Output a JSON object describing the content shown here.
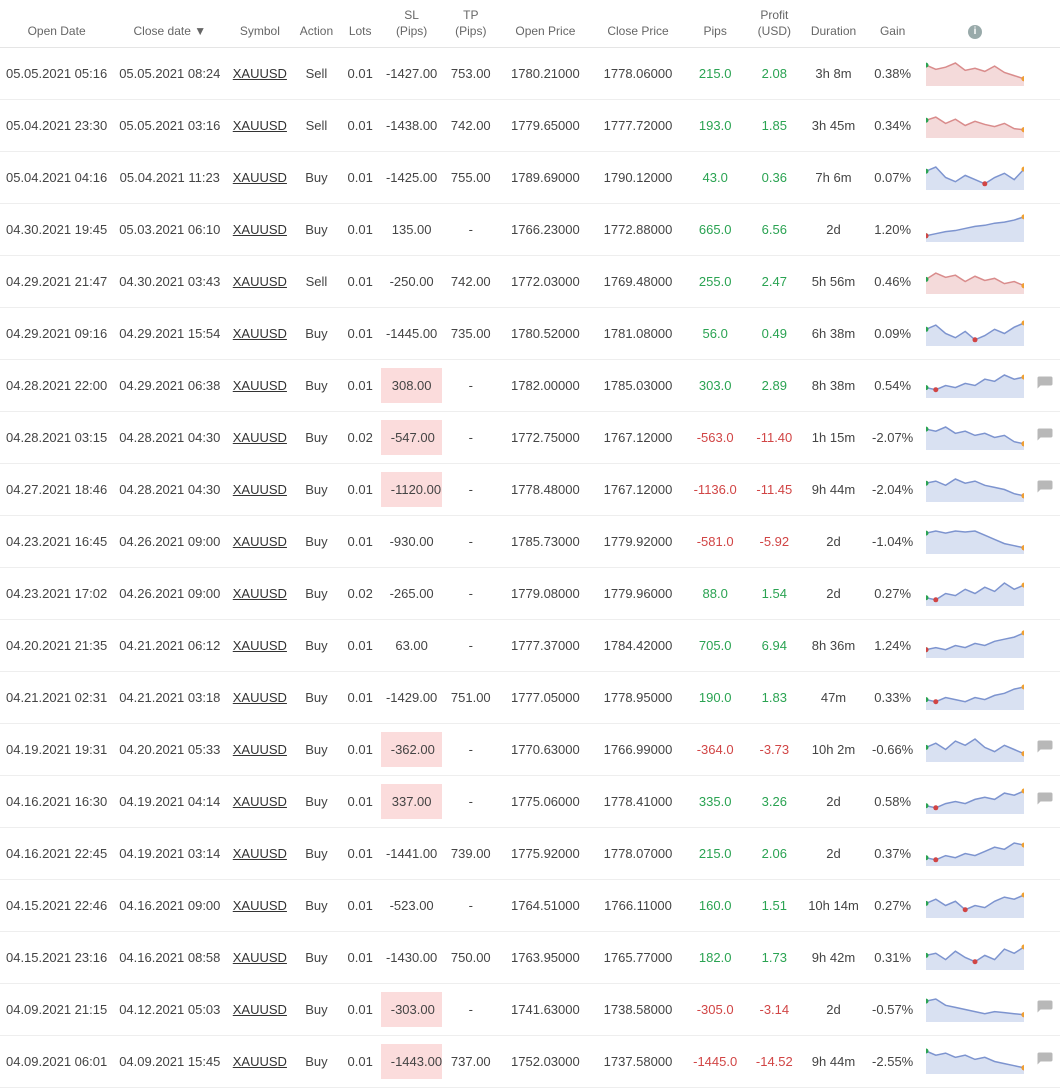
{
  "colors": {
    "positive": "#2aa352",
    "negative": "#d14545",
    "sl_hit_bg": "#fbdcdc",
    "row_border": "#eeeeee",
    "header_border": "#e5e5e5",
    "text": "#444444",
    "header_text": "#666666",
    "symbol": "#333333",
    "spark_buy_stroke": "#7d94cf",
    "spark_buy_fill": "#d9e1f2",
    "spark_sell_stroke": "#d98c8c",
    "spark_sell_fill": "#f4dada",
    "marker_green": "#2aa352",
    "marker_red": "#d14545",
    "marker_orange": "#f0a030",
    "comment_icon": "#b8b8b8"
  },
  "table": {
    "headers": {
      "open_date": "Open Date",
      "close_date": "Close date ▼",
      "symbol": "Symbol",
      "action": "Action",
      "lots": "Lots",
      "sl": "SL\n(Pips)",
      "tp": "TP\n(Pips)",
      "open_price": "Open Price",
      "close_price": "Close Price",
      "pips": "Pips",
      "profit": "Profit\n(USD)",
      "duration": "Duration",
      "gain": "Gain",
      "chart": "ⓘ"
    },
    "rows": [
      {
        "open": "05.05.2021 05:16",
        "close": "05.05.2021 08:24",
        "symbol": "XAUUSD",
        "action": "Sell",
        "lots": "0.01",
        "sl": "-1427.00",
        "sl_hit": false,
        "tp": "753.00",
        "op": "1780.21000",
        "cp": "1778.06000",
        "pips": "215.0",
        "pips_pos": true,
        "profit": "2.08",
        "profit_pos": true,
        "dur": "3h 8m",
        "gain": "0.38%",
        "spark": [
          18,
          14,
          16,
          20,
          13,
          15,
          12,
          17,
          11,
          8,
          5
        ],
        "comment": false
      },
      {
        "open": "05.04.2021 23:30",
        "close": "05.05.2021 03:16",
        "symbol": "XAUUSD",
        "action": "Sell",
        "lots": "0.01",
        "sl": "-1438.00",
        "sl_hit": false,
        "tp": "742.00",
        "op": "1779.65000",
        "cp": "1777.72000",
        "pips": "193.0",
        "pips_pos": true,
        "profit": "1.85",
        "profit_pos": true,
        "dur": "3h 45m",
        "gain": "0.34%",
        "spark": [
          15,
          18,
          12,
          16,
          10,
          14,
          11,
          9,
          12,
          7,
          6
        ],
        "comment": false
      },
      {
        "open": "05.04.2021 04:16",
        "close": "05.04.2021 11:23",
        "symbol": "XAUUSD",
        "action": "Buy",
        "lots": "0.01",
        "sl": "-1425.00",
        "sl_hit": false,
        "tp": "755.00",
        "op": "1789.69000",
        "cp": "1790.12000",
        "pips": "43.0",
        "pips_pos": true,
        "profit": "0.36",
        "profit_pos": true,
        "dur": "7h 6m",
        "gain": "0.07%",
        "spark": [
          16,
          20,
          10,
          6,
          12,
          8,
          4,
          10,
          14,
          8,
          18
        ],
        "comment": false
      },
      {
        "open": "04.30.2021 19:45",
        "close": "05.03.2021 06:10",
        "symbol": "XAUUSD",
        "action": "Buy",
        "lots": "0.01",
        "sl": "135.00",
        "sl_hit": false,
        "tp": "-",
        "op": "1766.23000",
        "cp": "1772.88000",
        "pips": "665.0",
        "pips_pos": true,
        "profit": "6.56",
        "profit_pos": true,
        "dur": "2d",
        "gain": "1.20%",
        "spark": [
          4,
          6,
          8,
          9,
          11,
          13,
          14,
          16,
          17,
          19,
          22
        ],
        "comment": false
      },
      {
        "open": "04.29.2021 21:47",
        "close": "04.30.2021 03:43",
        "symbol": "XAUUSD",
        "action": "Sell",
        "lots": "0.01",
        "sl": "-250.00",
        "sl_hit": false,
        "tp": "742.00",
        "op": "1772.03000",
        "cp": "1769.48000",
        "pips": "255.0",
        "pips_pos": true,
        "profit": "2.47",
        "profit_pos": true,
        "dur": "5h 56m",
        "gain": "0.46%",
        "spark": [
          12,
          18,
          14,
          16,
          10,
          15,
          11,
          13,
          8,
          10,
          6
        ],
        "comment": false
      },
      {
        "open": "04.29.2021 09:16",
        "close": "04.29.2021 15:54",
        "symbol": "XAUUSD",
        "action": "Buy",
        "lots": "0.01",
        "sl": "-1445.00",
        "sl_hit": false,
        "tp": "735.00",
        "op": "1780.52000",
        "cp": "1781.08000",
        "pips": "56.0",
        "pips_pos": true,
        "profit": "0.49",
        "profit_pos": true,
        "dur": "6h 38m",
        "gain": "0.09%",
        "spark": [
          14,
          18,
          10,
          6,
          12,
          4,
          8,
          14,
          10,
          16,
          20
        ],
        "comment": false
      },
      {
        "open": "04.28.2021 22:00",
        "close": "04.29.2021 06:38",
        "symbol": "XAUUSD",
        "action": "Buy",
        "lots": "0.01",
        "sl": "308.00",
        "sl_hit": true,
        "tp": "-",
        "op": "1782.00000",
        "cp": "1785.03000",
        "pips": "303.0",
        "pips_pos": true,
        "profit": "2.89",
        "profit_pos": true,
        "dur": "8h 38m",
        "gain": "0.54%",
        "spark": [
          8,
          6,
          10,
          8,
          12,
          10,
          16,
          14,
          20,
          16,
          18
        ],
        "comment": true
      },
      {
        "open": "04.28.2021 03:15",
        "close": "04.28.2021 04:30",
        "symbol": "XAUUSD",
        "action": "Buy",
        "lots": "0.02",
        "sl": "-547.00",
        "sl_hit": true,
        "tp": "-",
        "op": "1772.75000",
        "cp": "1767.12000",
        "pips": "-563.0",
        "pips_pos": false,
        "profit": "-11.40",
        "profit_pos": false,
        "dur": "1h 15m",
        "gain": "-2.07%",
        "spark": [
          18,
          16,
          20,
          14,
          16,
          12,
          14,
          10,
          12,
          6,
          4
        ],
        "comment": true
      },
      {
        "open": "04.27.2021 18:46",
        "close": "04.28.2021 04:30",
        "symbol": "XAUUSD",
        "action": "Buy",
        "lots": "0.01",
        "sl": "-1120.00",
        "sl_hit": true,
        "tp": "-",
        "op": "1778.48000",
        "cp": "1767.12000",
        "pips": "-1136.0",
        "pips_pos": false,
        "profit": "-11.45",
        "profit_pos": false,
        "dur": "9h 44m",
        "gain": "-2.04%",
        "spark": [
          16,
          18,
          14,
          20,
          16,
          18,
          14,
          12,
          10,
          6,
          4
        ],
        "comment": true
      },
      {
        "open": "04.23.2021 16:45",
        "close": "04.26.2021 09:00",
        "symbol": "XAUUSD",
        "action": "Buy",
        "lots": "0.01",
        "sl": "-930.00",
        "sl_hit": false,
        "tp": "-",
        "op": "1785.73000",
        "cp": "1779.92000",
        "pips": "-581.0",
        "pips_pos": false,
        "profit": "-5.92",
        "profit_pos": false,
        "dur": "2d",
        "gain": "-1.04%",
        "spark": [
          18,
          20,
          18,
          20,
          19,
          20,
          16,
          12,
          8,
          6,
          4
        ],
        "comment": false
      },
      {
        "open": "04.23.2021 17:02",
        "close": "04.26.2021 09:00",
        "symbol": "XAUUSD",
        "action": "Buy",
        "lots": "0.02",
        "sl": "-265.00",
        "sl_hit": false,
        "tp": "-",
        "op": "1779.08000",
        "cp": "1779.96000",
        "pips": "88.0",
        "pips_pos": true,
        "profit": "1.54",
        "profit_pos": true,
        "dur": "2d",
        "gain": "0.27%",
        "spark": [
          6,
          4,
          10,
          8,
          14,
          10,
          16,
          12,
          20,
          14,
          18
        ],
        "comment": false
      },
      {
        "open": "04.20.2021 21:35",
        "close": "04.21.2021 06:12",
        "symbol": "XAUUSD",
        "action": "Buy",
        "lots": "0.01",
        "sl": "63.00",
        "sl_hit": false,
        "tp": "-",
        "op": "1777.37000",
        "cp": "1784.42000",
        "pips": "705.0",
        "pips_pos": true,
        "profit": "6.94",
        "profit_pos": true,
        "dur": "8h 36m",
        "gain": "1.24%",
        "spark": [
          6,
          8,
          6,
          10,
          8,
          12,
          10,
          14,
          16,
          18,
          22
        ],
        "comment": false
      },
      {
        "open": "04.21.2021 02:31",
        "close": "04.21.2021 03:18",
        "symbol": "XAUUSD",
        "action": "Buy",
        "lots": "0.01",
        "sl": "-1429.00",
        "sl_hit": false,
        "tp": "751.00",
        "op": "1777.05000",
        "cp": "1778.95000",
        "pips": "190.0",
        "pips_pos": true,
        "profit": "1.83",
        "profit_pos": true,
        "dur": "47m",
        "gain": "0.33%",
        "spark": [
          8,
          6,
          10,
          8,
          6,
          10,
          8,
          12,
          14,
          18,
          20
        ],
        "comment": false
      },
      {
        "open": "04.19.2021 19:31",
        "close": "04.20.2021 05:33",
        "symbol": "XAUUSD",
        "action": "Buy",
        "lots": "0.01",
        "sl": "-362.00",
        "sl_hit": true,
        "tp": "-",
        "op": "1770.63000",
        "cp": "1766.99000",
        "pips": "-364.0",
        "pips_pos": false,
        "profit": "-3.73",
        "profit_pos": false,
        "dur": "10h 2m",
        "gain": "-0.66%",
        "spark": [
          12,
          16,
          10,
          18,
          14,
          20,
          12,
          8,
          14,
          10,
          6
        ],
        "comment": true
      },
      {
        "open": "04.16.2021 16:30",
        "close": "04.19.2021 04:14",
        "symbol": "XAUUSD",
        "action": "Buy",
        "lots": "0.01",
        "sl": "337.00",
        "sl_hit": true,
        "tp": "-",
        "op": "1775.06000",
        "cp": "1778.41000",
        "pips": "335.0",
        "pips_pos": true,
        "profit": "3.26",
        "profit_pos": true,
        "dur": "2d",
        "gain": "0.58%",
        "spark": [
          6,
          4,
          8,
          10,
          8,
          12,
          14,
          12,
          18,
          16,
          20
        ],
        "comment": true
      },
      {
        "open": "04.16.2021 22:45",
        "close": "04.19.2021 03:14",
        "symbol": "XAUUSD",
        "action": "Buy",
        "lots": "0.01",
        "sl": "-1441.00",
        "sl_hit": false,
        "tp": "739.00",
        "op": "1775.92000",
        "cp": "1778.07000",
        "pips": "215.0",
        "pips_pos": true,
        "profit": "2.06",
        "profit_pos": true,
        "dur": "2d",
        "gain": "0.37%",
        "spark": [
          6,
          4,
          8,
          6,
          10,
          8,
          12,
          16,
          14,
          20,
          18
        ],
        "comment": false
      },
      {
        "open": "04.15.2021 22:46",
        "close": "04.16.2021 09:00",
        "symbol": "XAUUSD",
        "action": "Buy",
        "lots": "0.01",
        "sl": "-523.00",
        "sl_hit": false,
        "tp": "-",
        "op": "1764.51000",
        "cp": "1766.11000",
        "pips": "160.0",
        "pips_pos": true,
        "profit": "1.51",
        "profit_pos": true,
        "dur": "10h 14m",
        "gain": "0.27%",
        "spark": [
          12,
          16,
          10,
          14,
          6,
          10,
          8,
          14,
          18,
          16,
          20
        ],
        "comment": false
      },
      {
        "open": "04.15.2021 23:16",
        "close": "04.16.2021 08:58",
        "symbol": "XAUUSD",
        "action": "Buy",
        "lots": "0.01",
        "sl": "-1430.00",
        "sl_hit": false,
        "tp": "750.00",
        "op": "1763.95000",
        "cp": "1765.77000",
        "pips": "182.0",
        "pips_pos": true,
        "profit": "1.73",
        "profit_pos": true,
        "dur": "9h 42m",
        "gain": "0.31%",
        "spark": [
          12,
          14,
          8,
          16,
          10,
          6,
          12,
          8,
          18,
          14,
          20
        ],
        "comment": false
      },
      {
        "open": "04.09.2021 21:15",
        "close": "04.12.2021 05:03",
        "symbol": "XAUUSD",
        "action": "Buy",
        "lots": "0.01",
        "sl": "-303.00",
        "sl_hit": true,
        "tp": "-",
        "op": "1741.63000",
        "cp": "1738.58000",
        "pips": "-305.0",
        "pips_pos": false,
        "profit": "-3.14",
        "profit_pos": false,
        "dur": "2d",
        "gain": "-0.57%",
        "spark": [
          18,
          20,
          14,
          12,
          10,
          8,
          6,
          8,
          7,
          6,
          5
        ],
        "comment": true
      },
      {
        "open": "04.09.2021 06:01",
        "close": "04.09.2021 15:45",
        "symbol": "XAUUSD",
        "action": "Buy",
        "lots": "0.01",
        "sl": "-1443.00",
        "sl_hit": true,
        "tp": "737.00",
        "op": "1752.03000",
        "cp": "1737.58000",
        "pips": "-1445.0",
        "pips_pos": false,
        "profit": "-14.52",
        "profit_pos": false,
        "dur": "9h 44m",
        "gain": "-2.55%",
        "spark": [
          20,
          16,
          18,
          14,
          16,
          12,
          14,
          10,
          8,
          6,
          4
        ],
        "comment": true
      }
    ]
  }
}
